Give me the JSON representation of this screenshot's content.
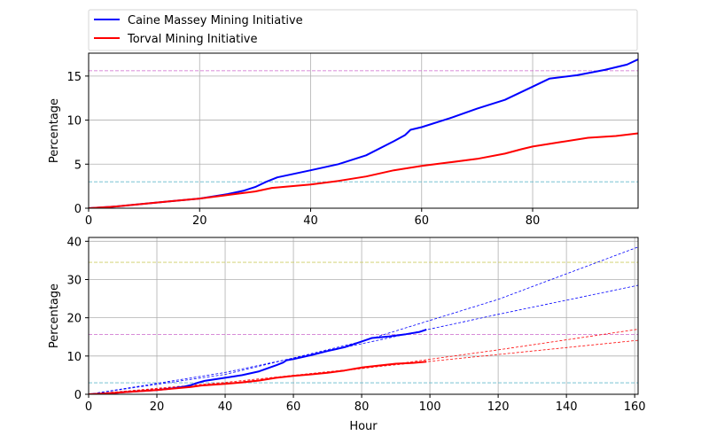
{
  "chart_data": [
    {
      "type": "line",
      "ylabel": "Percentage",
      "xlabel": "",
      "xlim": [
        0,
        99
      ],
      "ylim": [
        0,
        17.6
      ],
      "xticks": [
        0,
        20,
        40,
        60,
        80
      ],
      "yticks": [
        0,
        5,
        10,
        15
      ],
      "grid": true,
      "legend": {
        "placement": "above-top-left",
        "entries": [
          {
            "label": "Caine Massey Mining Initiative",
            "color": "#0000ff"
          },
          {
            "label": "Torval Mining Initiative",
            "color": "#ff0000"
          }
        ]
      },
      "reference_lines": [
        {
          "y": 15.6,
          "color": "#cc66cc",
          "style": "dashed"
        },
        {
          "y": 3.0,
          "color": "#66bbcc",
          "style": "dashed"
        }
      ],
      "series": [
        {
          "name": "Caine Massey Mining Initiative",
          "color": "#0000ff",
          "x": [
            0,
            5,
            10,
            15,
            20,
            25,
            28,
            30,
            32,
            34,
            40,
            45,
            50,
            55,
            57,
            58,
            60,
            65,
            70,
            75,
            80,
            83,
            88,
            93,
            97,
            99
          ],
          "y": [
            0,
            0.2,
            0.5,
            0.8,
            1.1,
            1.6,
            2.0,
            2.4,
            3.0,
            3.5,
            4.3,
            5.0,
            6.0,
            7.6,
            8.3,
            8.9,
            9.2,
            10.2,
            11.3,
            12.3,
            13.8,
            14.7,
            15.1,
            15.7,
            16.3,
            16.9
          ]
        },
        {
          "name": "Torval Mining Initiative",
          "color": "#ff0000",
          "x": [
            0,
            5,
            10,
            15,
            20,
            25,
            30,
            33,
            40,
            45,
            50,
            55,
            60,
            65,
            70,
            75,
            78,
            80,
            85,
            90,
            95,
            99
          ],
          "y": [
            0,
            0.2,
            0.5,
            0.8,
            1.1,
            1.5,
            1.9,
            2.3,
            2.7,
            3.1,
            3.6,
            4.3,
            4.8,
            5.2,
            5.6,
            6.2,
            6.7,
            7.0,
            7.5,
            8.0,
            8.2,
            8.5
          ]
        }
      ]
    },
    {
      "type": "line",
      "ylabel": "Percentage",
      "xlabel": "Hour",
      "xlim": [
        0,
        161
      ],
      "ylim": [
        0,
        41
      ],
      "xticks": [
        0,
        20,
        40,
        60,
        80,
        100,
        120,
        140,
        160
      ],
      "yticks": [
        0,
        10,
        20,
        30,
        40
      ],
      "grid": true,
      "reference_lines": [
        {
          "y": 34.5,
          "color": "#cccc66",
          "style": "dashed"
        },
        {
          "y": 15.6,
          "color": "#cc66cc",
          "style": "dashed"
        },
        {
          "y": 3.0,
          "color": "#66bbcc",
          "style": "dashed"
        }
      ],
      "series": [
        {
          "name": "Caine Massey Mining Initiative",
          "color": "#0000ff",
          "x": [
            0,
            5,
            10,
            15,
            20,
            25,
            28,
            30,
            32,
            34,
            40,
            45,
            50,
            55,
            57,
            58,
            60,
            65,
            70,
            75,
            80,
            83,
            88,
            93,
            97,
            99
          ],
          "y": [
            0,
            0.2,
            0.5,
            0.8,
            1.1,
            1.6,
            2.0,
            2.4,
            3.0,
            3.5,
            4.3,
            5.0,
            6.0,
            7.6,
            8.3,
            8.9,
            9.2,
            10.2,
            11.3,
            12.3,
            13.8,
            14.7,
            15.1,
            15.7,
            16.3,
            16.9
          ]
        },
        {
          "name": "Torval Mining Initiative",
          "color": "#ff0000",
          "x": [
            0,
            5,
            10,
            15,
            20,
            25,
            30,
            33,
            40,
            45,
            50,
            55,
            60,
            65,
            70,
            75,
            78,
            80,
            85,
            90,
            95,
            99
          ],
          "y": [
            0,
            0.2,
            0.5,
            0.8,
            1.1,
            1.5,
            1.9,
            2.3,
            2.7,
            3.1,
            3.6,
            4.3,
            4.8,
            5.2,
            5.6,
            6.2,
            6.7,
            7.0,
            7.5,
            8.0,
            8.2,
            8.5
          ]
        }
      ],
      "projections": [
        {
          "name": "Caine Massey upper projection",
          "color": "#0000ff",
          "style": "dashed",
          "x": [
            0,
            40,
            80,
            120,
            161
          ],
          "y": [
            0,
            5.2,
            13.8,
            24.8,
            38.5
          ]
        },
        {
          "name": "Caine Massey lower projection",
          "color": "#0000ff",
          "style": "dashed",
          "x": [
            0,
            40,
            80,
            120,
            161
          ],
          "y": [
            0,
            5.7,
            13.2,
            20.9,
            28.5
          ]
        },
        {
          "name": "Torval upper projection",
          "color": "#ff0000",
          "style": "dashed",
          "x": [
            0,
            40,
            80,
            120,
            161
          ],
          "y": [
            0,
            2.8,
            6.7,
            11.6,
            17.0
          ]
        },
        {
          "name": "Torval lower projection",
          "color": "#ff0000",
          "style": "dashed",
          "x": [
            0,
            40,
            80,
            120,
            161
          ],
          "y": [
            0,
            3.1,
            6.8,
            10.4,
            14.1
          ]
        }
      ]
    }
  ]
}
